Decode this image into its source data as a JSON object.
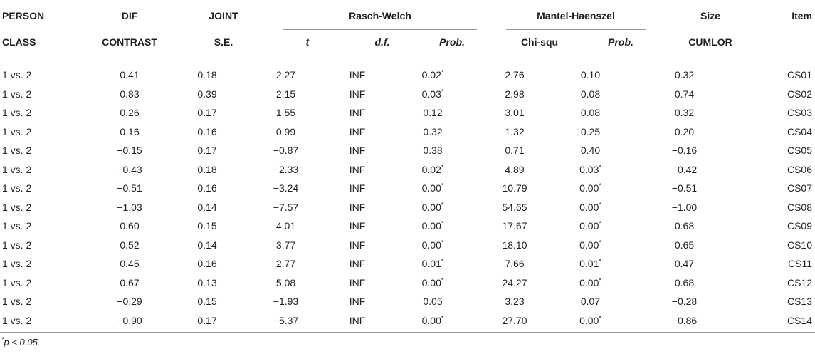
{
  "header": {
    "person_l1": "PERSON",
    "person_l2": "CLASS",
    "dif_l1": "DIF",
    "dif_l2": "CONTRAST",
    "joint_l1": "JOINT",
    "joint_l2": "S.E.",
    "rasch_group": "Rasch-Welch",
    "rasch_t": "t",
    "rasch_df": "d.f.",
    "rasch_prob": "Prob.",
    "mh_group": "Mantel-Haenszel",
    "mh_chi": "Chi-squ",
    "mh_prob": "Prob.",
    "size_l1": "Size",
    "size_l2": "CUMLOR",
    "item": "Item"
  },
  "rows": [
    {
      "person": "1 vs. 2",
      "dif": "0.41",
      "se": "0.18",
      "t": "2.27",
      "df": "INF",
      "rprob": "0.02",
      "rsig": "*",
      "chi": "2.76",
      "mprob": "0.10",
      "msig": "",
      "size": "0.32",
      "item": "CS01"
    },
    {
      "person": "1 vs. 2",
      "dif": "0.83",
      "se": "0.39",
      "t": "2.15",
      "df": "INF",
      "rprob": "0.03",
      "rsig": "*",
      "chi": "2.98",
      "mprob": "0.08",
      "msig": "",
      "size": "0.74",
      "item": "CS02"
    },
    {
      "person": "1 vs. 2",
      "dif": "0.26",
      "se": "0.17",
      "t": "1.55",
      "df": "INF",
      "rprob": "0.12",
      "rsig": "",
      "chi": "3.01",
      "mprob": "0.08",
      "msig": "",
      "size": "0.32",
      "item": "CS03"
    },
    {
      "person": "1 vs. 2",
      "dif": "0.16",
      "se": "0.16",
      "t": "0.99",
      "df": "INF",
      "rprob": "0.32",
      "rsig": "",
      "chi": "1.32",
      "mprob": "0.25",
      "msig": "",
      "size": "0.20",
      "item": "CS04"
    },
    {
      "person": "1 vs. 2",
      "dif": "−0.15",
      "se": "0.17",
      "t": "−0.87",
      "df": "INF",
      "rprob": "0.38",
      "rsig": "",
      "chi": "0.71",
      "mprob": "0.40",
      "msig": "",
      "size": "−0.16",
      "item": "CS05"
    },
    {
      "person": "1 vs. 2",
      "dif": "−0.43",
      "se": "0.18",
      "t": "−2.33",
      "df": "INF",
      "rprob": "0.02",
      "rsig": "*",
      "chi": "4.89",
      "mprob": "0.03",
      "msig": "*",
      "size": "−0.42",
      "item": "CS06"
    },
    {
      "person": "1 vs. 2",
      "dif": "−0.51",
      "se": "0.16",
      "t": "−3.24",
      "df": "INF",
      "rprob": "0.00",
      "rsig": "*",
      "chi": "10.79",
      "mprob": "0.00",
      "msig": "*",
      "size": "−0.51",
      "item": "CS07"
    },
    {
      "person": "1 vs. 2",
      "dif": "−1.03",
      "se": "0.14",
      "t": "−7.57",
      "df": "INF",
      "rprob": "0.00",
      "rsig": "*",
      "chi": "54.65",
      "mprob": "0.00",
      "msig": "*",
      "size": "−1.00",
      "item": "CS08"
    },
    {
      "person": "1 vs. 2",
      "dif": "0.60",
      "se": "0.15",
      "t": "4.01",
      "df": "INF",
      "rprob": "0.00",
      "rsig": "*",
      "chi": "17.67",
      "mprob": "0.00",
      "msig": "*",
      "size": "0.68",
      "item": "CS09"
    },
    {
      "person": "1 vs. 2",
      "dif": "0.52",
      "se": "0.14",
      "t": "3.77",
      "df": "INF",
      "rprob": "0.00",
      "rsig": "*",
      "chi": "18.10",
      "mprob": "0.00",
      "msig": "*",
      "size": "0.65",
      "item": "CS10"
    },
    {
      "person": "1 vs. 2",
      "dif": "0.45",
      "se": "0.16",
      "t": "2.77",
      "df": "INF",
      "rprob": "0.01",
      "rsig": "*",
      "chi": "7.66",
      "mprob": "0.01",
      "msig": "*",
      "size": "0.47",
      "item": "CS11"
    },
    {
      "person": "1 vs. 2",
      "dif": "0.67",
      "se": "0.13",
      "t": "5.08",
      "df": "INF",
      "rprob": "0.00",
      "rsig": "*",
      "chi": "24.27",
      "mprob": "0.00",
      "msig": "*",
      "size": "0.68",
      "item": "CS12"
    },
    {
      "person": "1 vs. 2",
      "dif": "−0.29",
      "se": "0.15",
      "t": "−1.93",
      "df": "INF",
      "rprob": "0.05",
      "rsig": "",
      "chi": "3.23",
      "mprob": "0.07",
      "msig": "",
      "size": "−0.28",
      "item": "CS13"
    },
    {
      "person": "1 vs. 2",
      "dif": "−0.90",
      "se": "0.17",
      "t": "−5.37",
      "df": "INF",
      "rprob": "0.00",
      "rsig": "*",
      "chi": "27.70",
      "mprob": "0.00",
      "msig": "*",
      "size": "−0.86",
      "item": "CS14"
    }
  ],
  "footnote": {
    "mark": "*",
    "text": "p < 0.05."
  }
}
